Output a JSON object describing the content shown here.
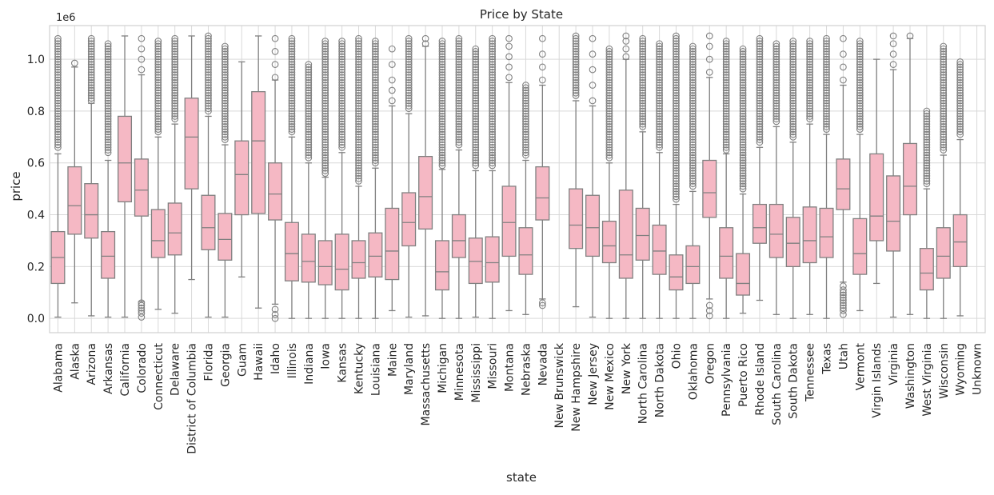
{
  "chart_data": {
    "type": "box",
    "title": "Price by State",
    "xlabel": "state",
    "ylabel": "price",
    "y_offset_label": "1e6",
    "ylim": [
      -0.055,
      1.13
    ],
    "yticks": [
      0.0,
      0.2,
      0.4,
      0.6,
      0.8,
      1.0
    ],
    "ytick_labels": [
      "0.0",
      "0.2",
      "0.4",
      "0.6",
      "0.8",
      "1.0"
    ],
    "grid": true,
    "box_color": "#f5b8c4",
    "line_color": "#808080",
    "categories": [
      "Alabama",
      "Alaska",
      "Arizona",
      "Arkansas",
      "California",
      "Colorado",
      "Connecticut",
      "Delaware",
      "District of Columbia",
      "Florida",
      "Georgia",
      "Guam",
      "Hawaii",
      "Idaho",
      "Illinois",
      "Indiana",
      "Iowa",
      "Kansas",
      "Kentucky",
      "Louisiana",
      "Maine",
      "Maryland",
      "Massachusetts",
      "Michigan",
      "Minnesota",
      "Mississippi",
      "Missouri",
      "Montana",
      "Nebraska",
      "Nevada",
      "New Brunswick",
      "New Hampshire",
      "New Jersey",
      "New Mexico",
      "New York",
      "North Carolina",
      "North Dakota",
      "Ohio",
      "Oklahoma",
      "Oregon",
      "Pennsylvania",
      "Puerto Rico",
      "Rhode Island",
      "South Carolina",
      "South Dakota",
      "Tennessee",
      "Texas",
      "Utah",
      "Vermont",
      "Virgin Islands",
      "Virginia",
      "Washington",
      "West Virginia",
      "Wisconsin",
      "Wyoming",
      "Unknown"
    ],
    "boxes": [
      {
        "min": 0.005,
        "q1": 0.135,
        "median": 0.235,
        "q3": 0.335,
        "max": 0.635,
        "outliers_low": [],
        "outliers_high": [
          0.66,
          0.72,
          0.78,
          0.84,
          0.9,
          0.96,
          1.02,
          1.08
        ]
      },
      {
        "min": 0.06,
        "q1": 0.325,
        "median": 0.435,
        "q3": 0.585,
        "max": 0.97,
        "outliers_low": [],
        "outliers_high": [
          0.985
        ]
      },
      {
        "min": 0.01,
        "q1": 0.31,
        "median": 0.4,
        "q3": 0.52,
        "max": 0.83,
        "outliers_low": [],
        "outliers_high": [
          0.84,
          0.88,
          0.92,
          0.96,
          1.0,
          1.04,
          1.08
        ]
      },
      {
        "min": 0.005,
        "q1": 0.155,
        "median": 0.24,
        "q3": 0.335,
        "max": 0.61,
        "outliers_low": [],
        "outliers_high": [
          0.64,
          0.7,
          0.76,
          0.82,
          0.88,
          0.94,
          1.0,
          1.06
        ]
      },
      {
        "min": 0.005,
        "q1": 0.45,
        "median": 0.6,
        "q3": 0.78,
        "max": 1.09,
        "outliers_low": [],
        "outliers_high": []
      },
      {
        "min": 0.065,
        "q1": 0.395,
        "median": 0.495,
        "q3": 0.615,
        "max": 0.94,
        "outliers_low": [
          0.005,
          0.02,
          0.04,
          0.06
        ],
        "outliers_high": [
          0.96,
          1.0,
          1.04,
          1.08
        ]
      },
      {
        "min": 0.035,
        "q1": 0.235,
        "median": 0.3,
        "q3": 0.42,
        "max": 0.7,
        "outliers_low": [],
        "outliers_high": [
          0.72,
          0.78,
          0.84,
          0.9,
          0.96,
          1.02,
          1.07
        ]
      },
      {
        "min": 0.02,
        "q1": 0.245,
        "median": 0.33,
        "q3": 0.445,
        "max": 0.75,
        "outliers_low": [],
        "outliers_high": [
          0.77,
          0.83,
          0.89,
          0.95,
          1.01,
          1.08
        ]
      },
      {
        "min": 0.15,
        "q1": 0.5,
        "median": 0.7,
        "q3": 0.85,
        "max": 1.09,
        "outliers_low": [],
        "outliers_high": []
      },
      {
        "min": 0.005,
        "q1": 0.265,
        "median": 0.35,
        "q3": 0.475,
        "max": 0.78,
        "outliers_low": [],
        "outliers_high": [
          0.8,
          0.86,
          0.92,
          0.98,
          1.04,
          1.09
        ]
      },
      {
        "min": 0.005,
        "q1": 0.225,
        "median": 0.305,
        "q3": 0.405,
        "max": 0.67,
        "outliers_low": [],
        "outliers_high": [
          0.69,
          0.75,
          0.81,
          0.87,
          0.93,
          0.99,
          1.05
        ]
      },
      {
        "min": 0.16,
        "q1": 0.4,
        "median": 0.555,
        "q3": 0.685,
        "max": 0.99,
        "outliers_low": [],
        "outliers_high": []
      },
      {
        "min": 0.04,
        "q1": 0.405,
        "median": 0.685,
        "q3": 0.875,
        "max": 1.09,
        "outliers_low": [],
        "outliers_high": []
      },
      {
        "min": 0.055,
        "q1": 0.38,
        "median": 0.48,
        "q3": 0.6,
        "max": 0.92,
        "outliers_low": [
          0.0,
          0.015,
          0.035
        ],
        "outliers_high": [
          0.93,
          0.98,
          1.03,
          1.08
        ]
      },
      {
        "min": 0.0,
        "q1": 0.145,
        "median": 0.25,
        "q3": 0.37,
        "max": 0.7,
        "outliers_low": [],
        "outliers_high": [
          0.72,
          0.78,
          0.84,
          0.9,
          0.96,
          1.02,
          1.08
        ]
      },
      {
        "min": 0.0,
        "q1": 0.14,
        "median": 0.22,
        "q3": 0.325,
        "max": 0.6,
        "outliers_low": [],
        "outliers_high": [
          0.62,
          0.68,
          0.74,
          0.8,
          0.86,
          0.92,
          0.98
        ]
      },
      {
        "min": 0.0,
        "q1": 0.13,
        "median": 0.2,
        "q3": 0.3,
        "max": 0.545,
        "outliers_low": [],
        "outliers_high": [
          0.56,
          0.62,
          0.68,
          0.74,
          0.8,
          0.86,
          0.92,
          0.98,
          1.04,
          1.07
        ]
      },
      {
        "min": 0.0,
        "q1": 0.11,
        "median": 0.19,
        "q3": 0.325,
        "max": 0.64,
        "outliers_low": [],
        "outliers_high": [
          0.66,
          0.72,
          0.78,
          0.84,
          0.9,
          0.96,
          1.02,
          1.07
        ]
      },
      {
        "min": 0.0,
        "q1": 0.155,
        "median": 0.215,
        "q3": 0.3,
        "max": 0.51,
        "outliers_low": [],
        "outliers_high": [
          0.53,
          0.59,
          0.65,
          0.71,
          0.77,
          0.83,
          0.89,
          0.95,
          1.01,
          1.08
        ]
      },
      {
        "min": 0.0,
        "q1": 0.16,
        "median": 0.24,
        "q3": 0.33,
        "max": 0.58,
        "outliers_low": [],
        "outliers_high": [
          0.6,
          0.66,
          0.72,
          0.78,
          0.84,
          0.9,
          0.96,
          1.02,
          1.07
        ]
      },
      {
        "min": 0.03,
        "q1": 0.15,
        "median": 0.26,
        "q3": 0.425,
        "max": 0.82,
        "outliers_low": [],
        "outliers_high": [
          0.84,
          0.88,
          0.92,
          0.98,
          1.04
        ]
      },
      {
        "min": 0.005,
        "q1": 0.28,
        "median": 0.37,
        "q3": 0.485,
        "max": 0.79,
        "outliers_low": [],
        "outliers_high": [
          0.81,
          0.87,
          0.93,
          0.99,
          1.05,
          1.08
        ]
      },
      {
        "min": 0.01,
        "q1": 0.345,
        "median": 0.47,
        "q3": 0.625,
        "max": 1.05,
        "outliers_low": [],
        "outliers_high": [
          1.06,
          1.08
        ]
      },
      {
        "min": 0.0,
        "q1": 0.11,
        "median": 0.18,
        "q3": 0.3,
        "max": 0.575,
        "outliers_low": [],
        "outliers_high": [
          0.59,
          0.65,
          0.71,
          0.77,
          0.83,
          0.89,
          0.95,
          1.01,
          1.07
        ]
      },
      {
        "min": 0.0,
        "q1": 0.235,
        "median": 0.3,
        "q3": 0.4,
        "max": 0.65,
        "outliers_low": [],
        "outliers_high": [
          0.67,
          0.73,
          0.79,
          0.85,
          0.91,
          0.97,
          1.03,
          1.08
        ]
      },
      {
        "min": 0.005,
        "q1": 0.135,
        "median": 0.22,
        "q3": 0.31,
        "max": 0.57,
        "outliers_low": [],
        "outliers_high": [
          0.59,
          0.64,
          0.7,
          0.76,
          0.82,
          0.88,
          0.94,
          1.04
        ]
      },
      {
        "min": 0.0,
        "q1": 0.14,
        "median": 0.215,
        "q3": 0.315,
        "max": 0.57,
        "outliers_low": [],
        "outliers_high": [
          0.59,
          0.65,
          0.71,
          0.77,
          0.83,
          0.89,
          0.95,
          1.01,
          1.08
        ]
      },
      {
        "min": 0.03,
        "q1": 0.24,
        "median": 0.37,
        "q3": 0.51,
        "max": 0.91,
        "outliers_low": [],
        "outliers_high": [
          0.93,
          0.97,
          1.01,
          1.05,
          1.08
        ]
      },
      {
        "min": 0.015,
        "q1": 0.17,
        "median": 0.245,
        "q3": 0.35,
        "max": 0.61,
        "outliers_low": [],
        "outliers_high": [
          0.63,
          0.67,
          0.71,
          0.75,
          0.79,
          0.85,
          0.9
        ]
      },
      {
        "min": 0.075,
        "q1": 0.38,
        "median": 0.465,
        "q3": 0.585,
        "max": 0.9,
        "outliers_low": [
          0.05,
          0.06
        ],
        "outliers_high": [
          0.92,
          0.97,
          1.02,
          1.08
        ]
      },
      {
        "min": null,
        "q1": null,
        "median": null,
        "q3": null,
        "max": null,
        "outliers_low": [],
        "outliers_high": []
      },
      {
        "min": 0.045,
        "q1": 0.27,
        "median": 0.36,
        "q3": 0.5,
        "max": 0.84,
        "outliers_low": [],
        "outliers_high": [
          0.86,
          0.9,
          0.94,
          1.0,
          1.05,
          1.09
        ]
      },
      {
        "min": 0.005,
        "q1": 0.24,
        "median": 0.35,
        "q3": 0.475,
        "max": 0.82,
        "outliers_low": [],
        "outliers_high": [
          0.84,
          0.9,
          0.96,
          1.02,
          1.08
        ]
      },
      {
        "min": 0.0,
        "q1": 0.215,
        "median": 0.28,
        "q3": 0.375,
        "max": 0.6,
        "outliers_low": [],
        "outliers_high": [
          0.62,
          0.68,
          0.74,
          0.8,
          0.86,
          0.92,
          0.98,
          1.04
        ]
      },
      {
        "min": 0.0,
        "q1": 0.155,
        "median": 0.245,
        "q3": 0.495,
        "max": 1.0,
        "outliers_low": [],
        "outliers_high": [
          1.01,
          1.04,
          1.07,
          1.09
        ]
      },
      {
        "min": 0.0,
        "q1": 0.225,
        "median": 0.32,
        "q3": 0.425,
        "max": 0.72,
        "outliers_low": [],
        "outliers_high": [
          0.74,
          0.8,
          0.86,
          0.92,
          0.98,
          1.04,
          1.08
        ]
      },
      {
        "min": 0.0,
        "q1": 0.17,
        "median": 0.26,
        "q3": 0.36,
        "max": 0.64,
        "outliers_low": [],
        "outliers_high": [
          0.66,
          0.7,
          0.73,
          0.85,
          0.95,
          1.06
        ]
      },
      {
        "min": 0.0,
        "q1": 0.11,
        "median": 0.16,
        "q3": 0.245,
        "max": 0.44,
        "outliers_low": [],
        "outliers_high": [
          0.46,
          0.52,
          0.58,
          0.64,
          0.7,
          0.76,
          0.82,
          0.88,
          0.94,
          1.0,
          1.06,
          1.09
        ]
      },
      {
        "min": 0.0,
        "q1": 0.135,
        "median": 0.2,
        "q3": 0.28,
        "max": 0.49,
        "outliers_low": [],
        "outliers_high": [
          0.51,
          0.57,
          0.63,
          0.69,
          0.75,
          0.81,
          0.87,
          0.93,
          0.99,
          1.05
        ]
      },
      {
        "min": 0.075,
        "q1": 0.39,
        "median": 0.485,
        "q3": 0.61,
        "max": 0.93,
        "outliers_low": [
          0.01,
          0.03,
          0.05
        ],
        "outliers_high": [
          0.95,
          1.0,
          1.05,
          1.09
        ]
      },
      {
        "min": 0.0,
        "q1": 0.155,
        "median": 0.24,
        "q3": 0.35,
        "max": 0.635,
        "outliers_low": [],
        "outliers_high": [
          0.65,
          0.71,
          0.77,
          0.83,
          0.89,
          0.95,
          1.01,
          1.07
        ]
      },
      {
        "min": 0.02,
        "q1": 0.09,
        "median": 0.135,
        "q3": 0.25,
        "max": 0.48,
        "outliers_low": [],
        "outliers_high": [
          0.5,
          0.54,
          0.6,
          0.66,
          0.72,
          0.78,
          0.84,
          0.9,
          0.96,
          1.04
        ]
      },
      {
        "min": 0.07,
        "q1": 0.29,
        "median": 0.35,
        "q3": 0.44,
        "max": 0.66,
        "outliers_low": [],
        "outliers_high": [
          0.68,
          0.74,
          0.8,
          0.86,
          0.92,
          0.98,
          1.04,
          1.08
        ]
      },
      {
        "min": 0.015,
        "q1": 0.235,
        "median": 0.325,
        "q3": 0.44,
        "max": 0.74,
        "outliers_low": [],
        "outliers_high": [
          0.76,
          0.82,
          0.88,
          0.94,
          1.0,
          1.06
        ]
      },
      {
        "min": 0.0,
        "q1": 0.2,
        "median": 0.29,
        "q3": 0.39,
        "max": 0.68,
        "outliers_low": [],
        "outliers_high": [
          0.7,
          0.76,
          0.82,
          0.88,
          0.94,
          1.0,
          1.07
        ]
      },
      {
        "min": 0.015,
        "q1": 0.215,
        "median": 0.3,
        "q3": 0.43,
        "max": 0.75,
        "outliers_low": [],
        "outliers_high": [
          0.77,
          0.83,
          0.89,
          0.95,
          1.01,
          1.07
        ]
      },
      {
        "min": 0.0,
        "q1": 0.235,
        "median": 0.315,
        "q3": 0.425,
        "max": 0.71,
        "outliers_low": [],
        "outliers_high": [
          0.73,
          0.79,
          0.85,
          0.91,
          0.97,
          1.03,
          1.08
        ]
      },
      {
        "min": 0.14,
        "q1": 0.42,
        "median": 0.5,
        "q3": 0.615,
        "max": 0.9,
        "outliers_low": [
          0.015,
          0.03,
          0.05,
          0.07,
          0.09,
          0.11,
          0.125
        ],
        "outliers_high": [
          0.92,
          0.97,
          1.02,
          1.08
        ]
      },
      {
        "min": 0.03,
        "q1": 0.17,
        "median": 0.25,
        "q3": 0.385,
        "max": 0.71,
        "outliers_low": [],
        "outliers_high": [
          0.73,
          0.76,
          0.8,
          0.85,
          0.9,
          0.96,
          0.99,
          1.07
        ]
      },
      {
        "min": 0.135,
        "q1": 0.3,
        "median": 0.395,
        "q3": 0.635,
        "max": 1.0,
        "outliers_low": [],
        "outliers_high": []
      },
      {
        "min": 0.005,
        "q1": 0.26,
        "median": 0.375,
        "q3": 0.55,
        "max": 0.96,
        "outliers_low": [],
        "outliers_high": [
          0.98,
          1.02,
          1.06,
          1.09
        ]
      },
      {
        "min": 0.015,
        "q1": 0.4,
        "median": 0.51,
        "q3": 0.675,
        "max": 1.08,
        "outliers_low": [],
        "outliers_high": [
          1.09
        ]
      },
      {
        "min": 0.0,
        "q1": 0.11,
        "median": 0.175,
        "q3": 0.27,
        "max": 0.5,
        "outliers_low": [],
        "outliers_high": [
          0.52,
          0.56,
          0.6,
          0.64,
          0.68,
          0.72,
          0.76,
          0.8
        ]
      },
      {
        "min": 0.0,
        "q1": 0.155,
        "median": 0.24,
        "q3": 0.35,
        "max": 0.63,
        "outliers_low": [],
        "outliers_high": [
          0.65,
          0.71,
          0.77,
          0.83,
          0.89,
          0.95,
          1.05
        ]
      },
      {
        "min": 0.01,
        "q1": 0.2,
        "median": 0.295,
        "q3": 0.4,
        "max": 0.69,
        "outliers_low": [],
        "outliers_high": [
          0.71,
          0.76,
          0.82,
          0.87,
          0.94,
          0.99
        ]
      },
      {
        "min": null,
        "q1": null,
        "median": null,
        "q3": null,
        "max": null,
        "outliers_low": [],
        "outliers_high": []
      }
    ]
  }
}
